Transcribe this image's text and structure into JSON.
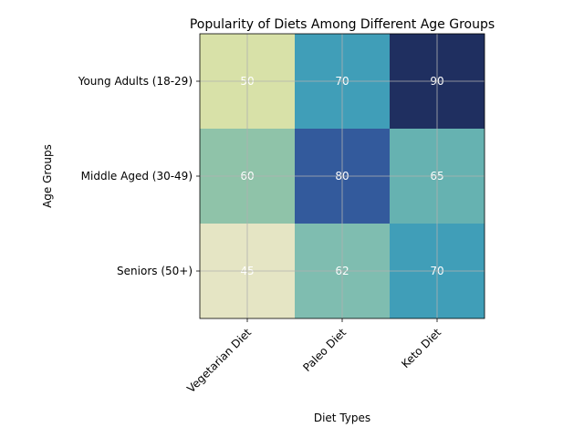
{
  "chart_data": {
    "type": "heatmap",
    "title": "Popularity of Diets Among Different Age Groups",
    "xlabel": "Diet Types",
    "ylabel": "Age Groups",
    "x_categories": [
      "Vegetarian Diet",
      "Paleo Diet",
      "Keto Diet"
    ],
    "y_categories": [
      "Young Adults (18-29)",
      "Middle Aged (30-49)",
      "Seniors (50+)"
    ],
    "values": [
      [
        50,
        70,
        90
      ],
      [
        60,
        80,
        65
      ],
      [
        45,
        62,
        70
      ]
    ],
    "colormap": "YlGnBu",
    "cell_labels": true,
    "grid": true,
    "cell_colors": [
      [
        "#d8e1a8",
        "#409eb8",
        "#1f2f60"
      ],
      [
        "#8fc3a9",
        "#335a9c",
        "#66b2b1"
      ],
      [
        "#e5e5c4",
        "#7fbdb0",
        "#409eb8"
      ]
    ],
    "label_color": "#ffffff"
  }
}
